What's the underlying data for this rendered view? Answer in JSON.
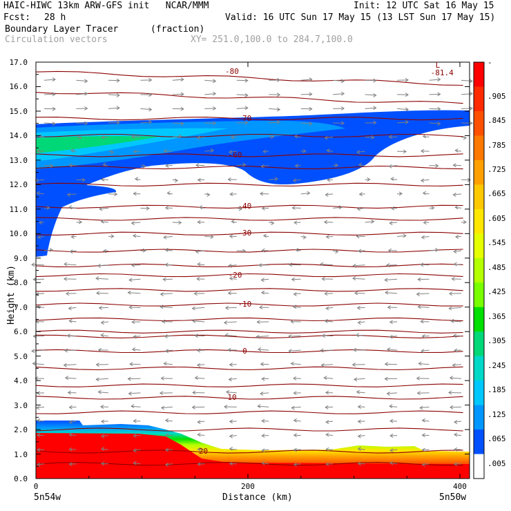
{
  "header": {
    "line1_left": "HAIC-HIWC 13km ARW-GFS init   NCAR/MMM",
    "line1_right": "Init: 12 UTC Sat 16 May 15",
    "line2_left_label": "Fcst:",
    "line2_left_value": "28 h",
    "line2_right": "Valid: 16 UTC Sun 17 May 15 (13 LST Sun 17 May 15)",
    "field_name": "Boundary Layer Tracer",
    "field_units": "(fraction)",
    "vectors_label": "Circulation vectors",
    "xsec_label": "XY= 251.0,100.0 to 284.7,100.0"
  },
  "chart_data": {
    "type": "heatmap",
    "title": "Boundary Layer Tracer (fraction)",
    "xlabel": "Distance (km)",
    "ylabel": "Height (km)",
    "x_ticks": [
      "0",
      "200",
      "400"
    ],
    "x_tick_values": [
      0,
      200,
      400
    ],
    "x_range": [
      0,
      403
    ],
    "x_endpoints": [
      "5n54w",
      "5n50w"
    ],
    "y_ticks": [
      "0.0",
      "1.0",
      "2.0",
      "3.0",
      "4.0",
      "5.0",
      "6.0",
      "7.0",
      "8.0",
      "9.0",
      "10.0",
      "11.0",
      "12.0",
      "13.0",
      "14.0",
      "15.0",
      "16.0",
      "17.0"
    ],
    "y_range": [
      0,
      17
    ],
    "colorbar_labels": [
      "-",
      ".905",
      ".845",
      ".785",
      ".725",
      ".665",
      ".605",
      ".545",
      ".485",
      ".425",
      ".365",
      ".305",
      ".245",
      ".185",
      ".125",
      ".065",
      ".005"
    ],
    "colorbar_colors": [
      "#ff0000",
      "#ff2a00",
      "#ff5000",
      "#ff7800",
      "#ffa000",
      "#ffc800",
      "#ffe600",
      "#e6ff00",
      "#b4ff00",
      "#78ff00",
      "#00e000",
      "#00d878",
      "#00d8c8",
      "#00c8ff",
      "#0096ff",
      "#0050ff",
      "#ffffff"
    ],
    "temperature_contours": [
      {
        "label": "-80",
        "height_km": 16.6,
        "label_x_km": 185
      },
      {
        "label": "-70",
        "height_km": 14.7,
        "label_x_km": 197
      },
      {
        "label": "-60",
        "height_km": 13.2,
        "label_x_km": 188
      },
      {
        "label": "-40",
        "height_km": 11.1,
        "label_x_km": 197
      },
      {
        "label": "-30",
        "height_km": 10.0,
        "label_x_km": 197
      },
      {
        "label": "-20",
        "height_km": 8.3,
        "label_x_km": 188
      },
      {
        "label": "-10",
        "height_km": 7.1,
        "label_x_km": 197
      },
      {
        "label": "0",
        "height_km": 5.2,
        "label_x_km": 197
      },
      {
        "label": "10",
        "height_km": 3.3,
        "label_x_km": 185
      },
      {
        "label": "20",
        "height_km": 1.1,
        "label_x_km": 158
      }
    ],
    "low_marker": {
      "label": "L",
      "value": "-81.4",
      "x_km": 375,
      "height_km": 16.9
    }
  }
}
